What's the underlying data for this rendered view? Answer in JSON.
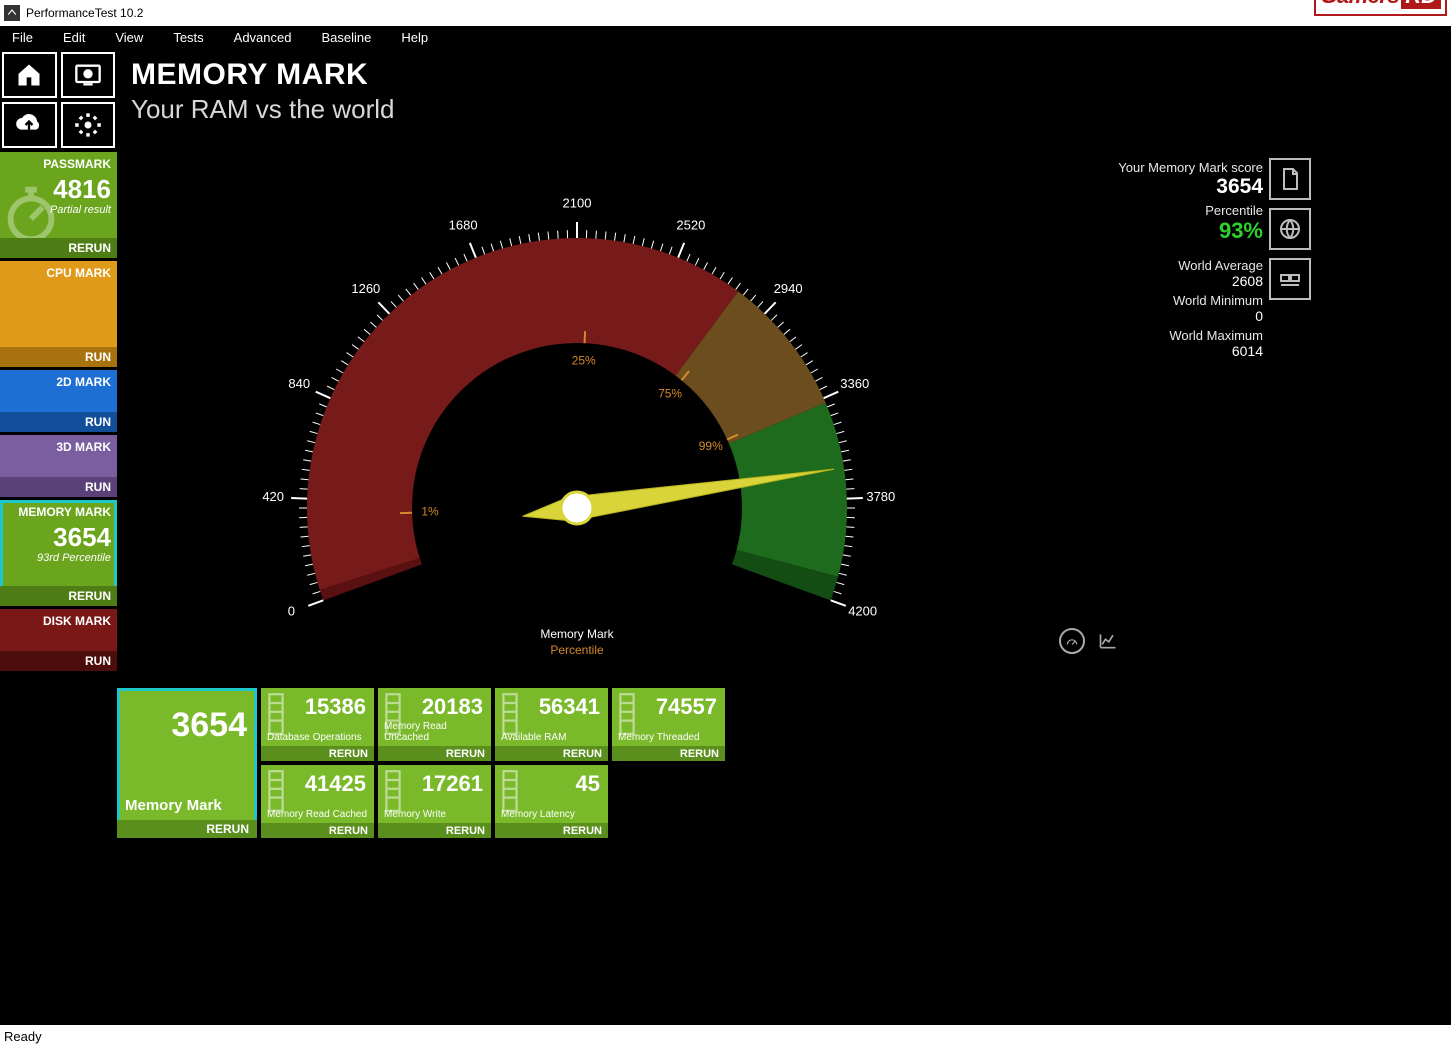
{
  "window": {
    "title": "PerformanceTest 10.2"
  },
  "menu": [
    "File",
    "Edit",
    "View",
    "Tests",
    "Advanced",
    "Baseline",
    "Help"
  ],
  "logo": {
    "left": "Gamers",
    "right": "RD"
  },
  "header": {
    "title": "MEMORY MARK",
    "subtitle": "Your RAM vs the world"
  },
  "sidebar": {
    "tiles": [
      {
        "id": "passmark",
        "title": "PASSMARK",
        "big": "4816",
        "sub": "Partial result",
        "footer": "RERUN",
        "bg": "#6aa51d",
        "footer_bg": "#4f7d15"
      },
      {
        "id": "cpu",
        "title": "CPU MARK",
        "big": "",
        "sub": "",
        "footer": "RUN",
        "bg": "#e09a1a",
        "footer_bg": "#a8730f"
      },
      {
        "id": "2d",
        "title": "2D MARK",
        "big": "",
        "sub": "",
        "footer": "RUN",
        "bg": "#1d6fd4",
        "footer_bg": "#124e99",
        "short": true
      },
      {
        "id": "3d",
        "title": "3D MARK",
        "big": "",
        "sub": "",
        "footer": "RUN",
        "bg": "#7a5ea0",
        "footer_bg": "#5a4278",
        "short": true
      },
      {
        "id": "memory",
        "title": "MEMORY MARK",
        "big": "3654",
        "sub": "93rd Percentile",
        "footer": "RERUN",
        "bg": "#6aa51d",
        "footer_bg": "#4f7d15",
        "selected": true
      },
      {
        "id": "disk",
        "title": "DISK MARK",
        "big": "",
        "sub": "",
        "footer": "RUN",
        "bg": "#7a1818",
        "footer_bg": "#4d0d0d",
        "short": true
      }
    ]
  },
  "gauge": {
    "min": 0,
    "max": 4200,
    "tick_step": 420,
    "tick_labels": [
      "0",
      "420",
      "840",
      "1260",
      "1680",
      "2100",
      "2520",
      "2940",
      "3360",
      "3780",
      "4200"
    ],
    "needle_value": 3654,
    "segments": [
      {
        "from": 0,
        "to": 45,
        "color": "#5a1010"
      },
      {
        "from": 45,
        "to": 2800,
        "color": "#761a1a"
      },
      {
        "from": 2800,
        "to": 3380,
        "color": "#6b4d1e"
      },
      {
        "from": 3380,
        "to": 4100,
        "color": "#1e6b1e"
      },
      {
        "from": 4100,
        "to": 4200,
        "color": "#134d13"
      }
    ],
    "inner_markers": [
      {
        "label": "1%",
        "value": 350,
        "color": "#d48a2a"
      },
      {
        "label": "25%",
        "value": 2150,
        "color": "#d48a2a"
      },
      {
        "label": "75%",
        "value": 2850,
        "color": "#d48a2a"
      },
      {
        "label": "99%",
        "value": 3350,
        "color": "#d48a2a"
      }
    ],
    "legend": {
      "line1": "Memory Mark",
      "line2": "Percentile",
      "color2": "#d48a2a"
    }
  },
  "stats": {
    "score_label": "Your Memory Mark score",
    "score": "3654",
    "pct_label": "Percentile",
    "pct": "93%",
    "avg_label": "World Average",
    "avg": "2608",
    "min_label": "World Minimum",
    "min": "0",
    "max_label": "World Maximum",
    "max": "6014"
  },
  "big_subtile": {
    "value": "3654",
    "label": "Memory Mark",
    "footer": "RERUN",
    "bg": "#79b92a",
    "footer_bg": "#5a8f1e"
  },
  "subtiles": [
    {
      "value": "15386",
      "label": "Database Operations",
      "footer": "RERUN"
    },
    {
      "value": "20183",
      "label": "Memory Read Uncached",
      "footer": "RERUN"
    },
    {
      "value": "56341",
      "label": "Available RAM",
      "footer": "RERUN"
    },
    {
      "value": "74557",
      "label": "Memory Threaded",
      "footer": "RERUN"
    },
    {
      "value": "41425",
      "label": "Memory Read Cached",
      "footer": "RERUN"
    },
    {
      "value": "17261",
      "label": "Memory Write",
      "footer": "RERUN"
    },
    {
      "value": "45",
      "label": "Memory Latency",
      "footer": "RERUN"
    }
  ],
  "subtile_colors": {
    "bg": "#79b92a",
    "footer_bg": "#5a8f1e"
  },
  "status": "Ready"
}
